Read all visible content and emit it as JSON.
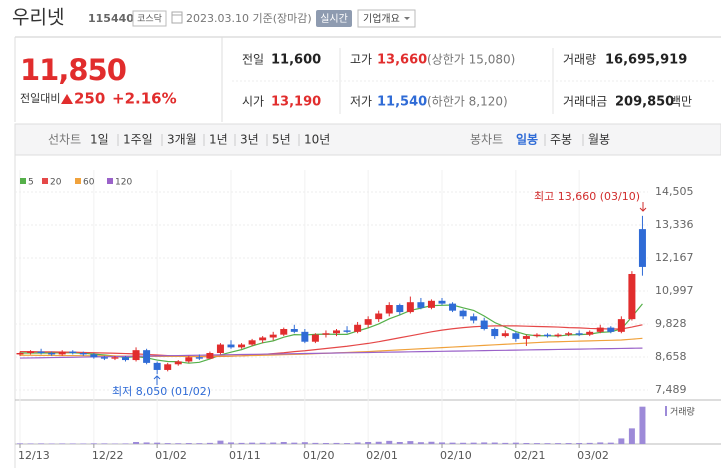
{
  "header": {
    "name": "우리넷",
    "code": "115440",
    "market": "코스닥",
    "date": "2023.03.10 기준(장마감)",
    "realtime": "실시간",
    "company_button": "기업개요"
  },
  "quote": {
    "price": "11,850",
    "change_label": "전일대비",
    "change": "250",
    "change_rate": "+2.16%",
    "items": [
      {
        "label": "전일",
        "value": "11,600"
      },
      {
        "label": "고가",
        "value": "13,660",
        "extra": "(상한가 15,080)"
      },
      {
        "label": "거래량",
        "value": "16,695,919"
      },
      {
        "label": "시가",
        "value": "13,190"
      },
      {
        "label": "저가",
        "value": "11,540",
        "extra": "(하한가 8,120)"
      },
      {
        "label": "거래대금",
        "value": "209,850",
        "unit": "백만"
      }
    ]
  },
  "tabs": {
    "line_label": "선차트",
    "line_periods": [
      "1일",
      "1주일",
      "3개월",
      "1년",
      "3년",
      "5년",
      "10년"
    ],
    "candle_label": "봉차트",
    "candle_periods": [
      "일봉",
      "주봉",
      "월봉"
    ]
  },
  "chart_data": {
    "type": "candlestick",
    "categories": [
      "12/13",
      null,
      null,
      null,
      null,
      null,
      null,
      "12/22",
      null,
      null,
      null,
      null,
      null,
      "01/02",
      null,
      null,
      null,
      null,
      null,
      null,
      "01/11",
      null,
      null,
      null,
      null,
      null,
      null,
      "01/20",
      null,
      null,
      null,
      null,
      null,
      "02/01",
      null,
      null,
      null,
      null,
      null,
      null,
      "02/10",
      null,
      null,
      null,
      null,
      null,
      null,
      "02/21",
      null,
      null,
      null,
      null,
      null,
      "03/02",
      null,
      null,
      null,
      null,
      null,
      null
    ],
    "open": [
      8750,
      8800,
      8850,
      8800,
      8750,
      8850,
      8800,
      8750,
      8650,
      8600,
      8650,
      8550,
      8900,
      8450,
      8200,
      8400,
      8500,
      8650,
      8600,
      8800,
      9100,
      9000,
      9100,
      9250,
      9350,
      9450,
      9650,
      9550,
      9200,
      9450,
      9500,
      9600,
      9550,
      9800,
      10000,
      10200,
      10500,
      10250,
      10600,
      10400,
      10650,
      10550,
      10300,
      10100,
      9950,
      9650,
      9400,
      9500,
      9300,
      9400,
      9450,
      9400,
      9450,
      9500,
      9450,
      9550,
      9700,
      9550,
      10000,
      13190
    ],
    "high": [
      8850,
      8900,
      8950,
      8850,
      8900,
      8900,
      8850,
      8800,
      8700,
      8700,
      8700,
      9000,
      8950,
      8500,
      8450,
      8550,
      8700,
      8750,
      8850,
      9150,
      9250,
      9150,
      9300,
      9400,
      9550,
      9700,
      9800,
      9650,
      9500,
      9600,
      9650,
      9750,
      9900,
      10100,
      10300,
      10600,
      10550,
      10800,
      10750,
      10700,
      10750,
      10600,
      10350,
      10200,
      10050,
      9700,
      9600,
      9550,
      9450,
      9500,
      9500,
      9500,
      9550,
      9600,
      9600,
      9800,
      9750,
      10100,
      11700,
      13660
    ],
    "low": [
      8700,
      8750,
      8750,
      8700,
      8700,
      8750,
      8700,
      8600,
      8550,
      8550,
      8500,
      8500,
      8400,
      8050,
      8150,
      8350,
      8450,
      8550,
      8600,
      8750,
      8950,
      8950,
      9050,
      9150,
      9250,
      9400,
      9500,
      9150,
      9150,
      9350,
      9400,
      9500,
      9500,
      9700,
      9900,
      10100,
      10150,
      10200,
      10350,
      10350,
      10500,
      10250,
      10000,
      9850,
      9600,
      9300,
      9350,
      9200,
      9050,
      9350,
      9350,
      9350,
      9400,
      9400,
      9400,
      9500,
      9500,
      9500,
      9950,
      11540
    ],
    "close": [
      8800,
      8850,
      8800,
      8750,
      8850,
      8800,
      8750,
      8650,
      8600,
      8650,
      8550,
      8900,
      8450,
      8200,
      8400,
      8500,
      8650,
      8600,
      8800,
      9100,
      9000,
      9100,
      9250,
      9350,
      9450,
      9650,
      9550,
      9200,
      9450,
      9500,
      9600,
      9550,
      9800,
      10000,
      10200,
      10500,
      10250,
      10600,
      10400,
      10650,
      10550,
      10300,
      10100,
      9950,
      9650,
      9400,
      9500,
      9300,
      9400,
      9450,
      9400,
      9450,
      9500,
      9450,
      9550,
      9700,
      9550,
      10000,
      11600,
      11850
    ],
    "up_color": "#e12d2d",
    "down_color": "#2f6bd6",
    "ylim": [
      7489,
      14505
    ],
    "yticks": [
      {
        "value": 14505,
        "label": "14,505"
      },
      {
        "value": 13336,
        "label": "13,336"
      },
      {
        "value": 12167,
        "label": "12,167"
      },
      {
        "value": 10997,
        "label": "10,997"
      },
      {
        "value": 9828,
        "label": "9,828"
      },
      {
        "value": 8658,
        "label": "8,658"
      },
      {
        "value": 7489,
        "label": "7,489"
      }
    ],
    "grid": true,
    "moving_averages": [
      {
        "name": "5",
        "color": "#55b04a",
        "values": [
          8800,
          8800,
          8800,
          8800,
          8810,
          8810,
          8790,
          8760,
          8730,
          8690,
          8640,
          8670,
          8630,
          8550,
          8500,
          8490,
          8440,
          8470,
          8590,
          8730,
          8830,
          8920,
          9050,
          9160,
          9230,
          9360,
          9450,
          9440,
          9460,
          9470,
          9460,
          9460,
          9580,
          9690,
          9830,
          10010,
          10150,
          10310,
          10390,
          10480,
          10490,
          10500,
          10400,
          10310,
          10110,
          9880,
          9720,
          9560,
          9450,
          9410,
          9410,
          9400,
          9440,
          9450,
          9470,
          9530,
          9550,
          9650,
          10080,
          10540
        ]
      },
      {
        "name": "20",
        "color": "#e54848",
        "values": [
          8850,
          8850,
          8840,
          8840,
          8830,
          8830,
          8820,
          8810,
          8800,
          8790,
          8780,
          8770,
          8750,
          8730,
          8710,
          8690,
          8680,
          8670,
          8670,
          8680,
          8690,
          8700,
          8720,
          8750,
          8780,
          8810,
          8850,
          8880,
          8920,
          8960,
          9000,
          9040,
          9090,
          9140,
          9200,
          9270,
          9340,
          9410,
          9480,
          9550,
          9610,
          9660,
          9700,
          9730,
          9750,
          9760,
          9760,
          9760,
          9750,
          9740,
          9730,
          9720,
          9700,
          9690,
          9670,
          9660,
          9650,
          9650,
          9720,
          9800
        ]
      },
      {
        "name": "60",
        "color": "#f0a23c",
        "values": [
          8720,
          8720,
          8715,
          8715,
          8710,
          8710,
          8705,
          8700,
          8700,
          8695,
          8690,
          8690,
          8685,
          8680,
          8680,
          8680,
          8680,
          8680,
          8685,
          8690,
          8695,
          8700,
          8710,
          8720,
          8730,
          8740,
          8750,
          8760,
          8775,
          8790,
          8805,
          8820,
          8835,
          8850,
          8870,
          8890,
          8910,
          8930,
          8950,
          8970,
          8990,
          9010,
          9030,
          9050,
          9070,
          9090,
          9110,
          9130,
          9150,
          9170,
          9190,
          9200,
          9210,
          9220,
          9230,
          9240,
          9250,
          9260,
          9290,
          9320
        ]
      },
      {
        "name": "120",
        "color": "#9a62c9",
        "values": [
          8620,
          8626,
          8632,
          8638,
          8644,
          8650,
          8656,
          8662,
          8668,
          8674,
          8680,
          8686,
          8692,
          8698,
          8704,
          8710,
          8716,
          8722,
          8728,
          8734,
          8740,
          8746,
          8752,
          8758,
          8764,
          8770,
          8776,
          8782,
          8788,
          8794,
          8800,
          8806,
          8812,
          8818,
          8824,
          8830,
          8836,
          8842,
          8848,
          8854,
          8860,
          8866,
          8872,
          8878,
          8884,
          8890,
          8896,
          8902,
          8908,
          8914,
          8920,
          8926,
          8932,
          8938,
          8944,
          8950,
          8956,
          8962,
          8968,
          8974
        ]
      }
    ],
    "volume": {
      "name": "거래량",
      "color": "#9d8ad8",
      "ylim": [
        0,
        17000000
      ],
      "values": [
        300000,
        250000,
        280000,
        220000,
        260000,
        240000,
        230000,
        300000,
        280000,
        200000,
        260000,
        900000,
        700000,
        600000,
        400000,
        350000,
        420000,
        380000,
        500000,
        1500000,
        700000,
        500000,
        600000,
        550000,
        650000,
        900000,
        600000,
        800000,
        500000,
        450000,
        480000,
        420000,
        700000,
        900000,
        1000000,
        1400000,
        900000,
        1300000,
        800000,
        1000000,
        700000,
        600000,
        550000,
        600000,
        700000,
        650000,
        500000,
        600000,
        450000,
        400000,
        380000,
        400000,
        420000,
        450000,
        500000,
        700000,
        600000,
        2500000,
        7000000,
        16695919
      ]
    },
    "high_label": "최고 13,660 (03/10)",
    "low_label": "최저 8,050 (01/02)"
  }
}
